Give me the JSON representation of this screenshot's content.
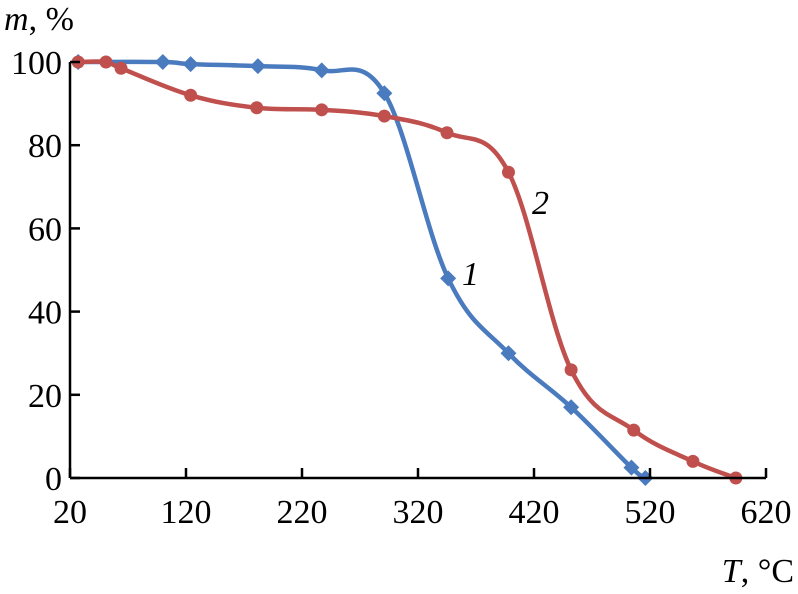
{
  "chart_data": {
    "type": "line",
    "xlabel_var": "T",
    "xlabel_unit": ", °C",
    "ylabel_var": "m",
    "ylabel_unit": ", %",
    "xlim": [
      20,
      620
    ],
    "ylim": [
      0,
      100
    ],
    "xticks": [
      20,
      120,
      220,
      320,
      420,
      520,
      620
    ],
    "yticks": [
      0,
      20,
      40,
      60,
      80,
      100
    ],
    "series": [
      {
        "label": "1",
        "color": "#4a7bbf",
        "marker": "diamond",
        "points": [
          [
            27,
            100
          ],
          [
            100,
            100
          ],
          [
            124,
            99.5
          ],
          [
            182,
            99
          ],
          [
            237,
            98
          ],
          [
            291,
            92.5
          ],
          [
            346,
            48
          ],
          [
            398,
            30
          ],
          [
            452,
            17
          ],
          [
            504,
            2.5
          ],
          [
            516,
            0
          ]
        ]
      },
      {
        "label": "2",
        "color": "#c0504d",
        "marker": "circle",
        "points": [
          [
            27,
            100
          ],
          [
            51,
            100
          ],
          [
            64,
            98.5
          ],
          [
            124,
            92
          ],
          [
            181,
            89
          ],
          [
            237,
            88.5
          ],
          [
            291,
            87
          ],
          [
            345,
            83
          ],
          [
            398,
            73.5
          ],
          [
            452,
            26
          ],
          [
            506,
            11.5
          ],
          [
            557,
            4
          ],
          [
            594,
            0
          ]
        ]
      }
    ]
  }
}
